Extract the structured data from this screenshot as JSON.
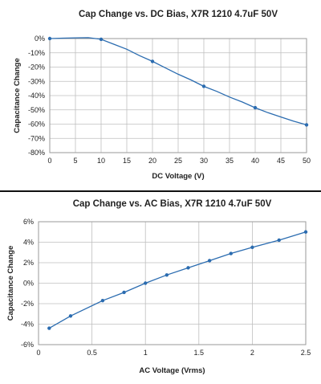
{
  "chart_data": [
    {
      "type": "line",
      "title": "Cap Change vs. DC Bias, X7R 1210 4.7uF 50V",
      "xlabel": "DC Voltage (V)",
      "ylabel": "Capacitance Change",
      "xlim": [
        0,
        50
      ],
      "ylim": [
        -80,
        0
      ],
      "x_ticks": [
        0,
        5,
        10,
        15,
        20,
        25,
        30,
        35,
        40,
        45,
        50
      ],
      "y_ticks": [
        0,
        -10,
        -20,
        -30,
        -40,
        -50,
        -60,
        -70,
        -80
      ],
      "x_tick_labels": [
        "0",
        "5",
        "10",
        "15",
        "20",
        "25",
        "30",
        "35",
        "40",
        "45",
        "50"
      ],
      "y_tick_labels": [
        "0%",
        "-10%",
        "-20%",
        "-30%",
        "-40%",
        "-50%",
        "-60%",
        "-70%",
        "-80%"
      ],
      "grid": true,
      "color": "#2b6cb0",
      "series": [
        {
          "x": [
            0,
            2.5,
            5,
            7.5,
            10,
            12.5,
            15,
            17.5,
            20,
            22.5,
            25,
            27.5,
            30,
            32.5,
            35,
            37.5,
            40,
            42.5,
            45,
            47.5,
            50
          ],
          "y": [
            0,
            0.3,
            0.5,
            0.6,
            -0.5,
            -4,
            -7.5,
            -12,
            -16,
            -20.5,
            -25,
            -29,
            -33.5,
            -37,
            -41,
            -44.5,
            -48.5,
            -52,
            -55,
            -58,
            -60.5
          ],
          "markers_at": [
            0,
            10,
            20,
            30,
            40,
            50
          ]
        }
      ]
    },
    {
      "type": "line",
      "title": "Cap Change vs. AC Bias, X7R 1210 4.7uF 50V",
      "xlabel": "AC Voltage (Vrms)",
      "ylabel": "Capacitance Change",
      "xlim": [
        0,
        2.5
      ],
      "ylim": [
        -6,
        6
      ],
      "x_ticks": [
        0,
        0.5,
        1,
        1.5,
        2,
        2.5
      ],
      "y_ticks": [
        6,
        4,
        2,
        0,
        -2,
        -4,
        -6
      ],
      "x_tick_labels": [
        "0",
        "0.5",
        "1",
        "1.5",
        "2",
        "2.5"
      ],
      "y_tick_labels": [
        "6%",
        "4%",
        "2%",
        "0%",
        "-2%",
        "-4%",
        "-6%"
      ],
      "grid": true,
      "color": "#2b6cb0",
      "series": [
        {
          "x": [
            0.1,
            0.3,
            0.6,
            0.8,
            1.0,
            1.2,
            1.4,
            1.6,
            1.8,
            2.0,
            2.25,
            2.5
          ],
          "y": [
            -4.4,
            -3.2,
            -1.7,
            -0.9,
            0.0,
            0.8,
            1.5,
            2.2,
            2.9,
            3.5,
            4.2,
            5.0
          ]
        }
      ]
    }
  ]
}
